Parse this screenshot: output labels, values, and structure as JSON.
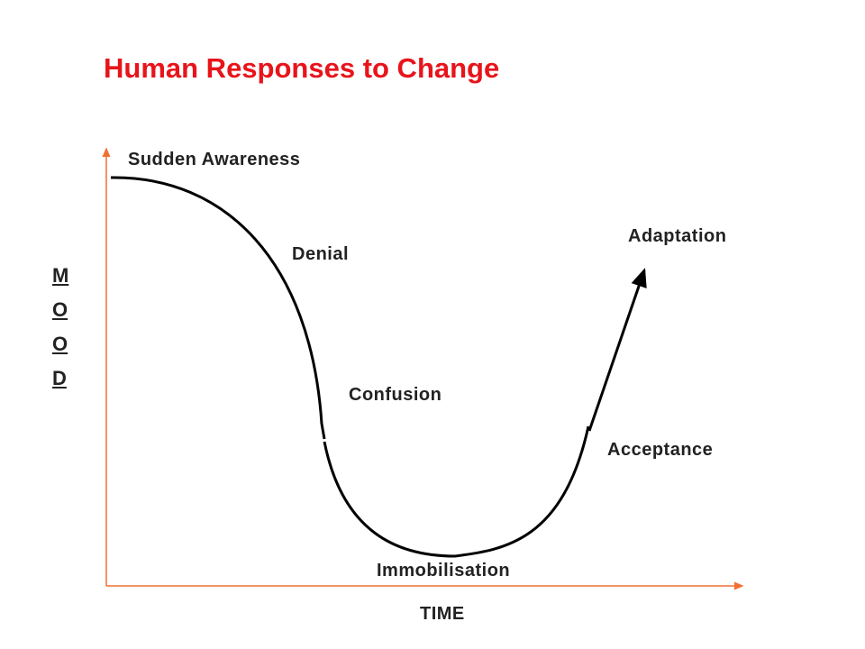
{
  "title": "Human Responses to Change",
  "y_axis_label": "MOOD",
  "x_axis_label": "TIME",
  "stages": [
    "Sudden Awareness",
    "Denial",
    "Confusion",
    "Immobilisation",
    "Acceptance",
    "Adaptation"
  ]
}
